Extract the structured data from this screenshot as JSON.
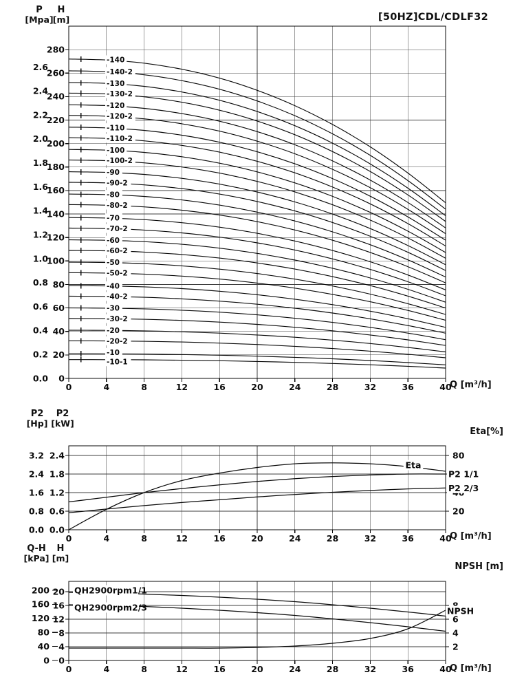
{
  "chart_data": [
    {
      "name": "main-qh-curves",
      "type": "line",
      "title": "[50HZ]CDL/CDLF32",
      "xlabel": "Q [m³/h]",
      "xlim": [
        0,
        40
      ],
      "x_ticks": [
        0,
        4,
        8,
        12,
        16,
        20,
        24,
        28,
        32,
        36,
        40
      ],
      "grid": true,
      "left_axis_1": {
        "symbol": "P",
        "unit": "[Mpa]",
        "m_per_unit": 101.97,
        "ticks": [
          "0.0",
          "0.2",
          "0.4",
          "0.6",
          "0.8",
          "1.0",
          "1.2",
          "1.4",
          "1.6",
          "1.8",
          "2.0",
          "2.2",
          "2.4",
          "2.6"
        ]
      },
      "left_axis_2": {
        "symbol": "H",
        "unit": "[m]",
        "ticks": [
          0,
          20,
          40,
          60,
          80,
          100,
          120,
          140,
          160,
          180,
          200,
          220,
          240,
          260,
          280
        ]
      },
      "ylim_m": [
        0,
        300
      ],
      "q_samples": [
        0,
        4,
        8,
        12,
        16,
        20,
        24,
        28,
        32,
        36,
        40
      ],
      "head_falloff": [
        1,
        0.997,
        0.987,
        0.968,
        0.94,
        0.902,
        0.854,
        0.795,
        0.725,
        0.643,
        0.55
      ],
      "series": [
        {
          "label": "-140",
          "shutoff_head_m": 272
        },
        {
          "label": "-140-2",
          "shutoff_head_m": 262
        },
        {
          "label": "-130",
          "shutoff_head_m": 252
        },
        {
          "label": "-130-2",
          "shutoff_head_m": 243
        },
        {
          "label": "-120",
          "shutoff_head_m": 233
        },
        {
          "label": "-120-2",
          "shutoff_head_m": 224
        },
        {
          "label": "-110",
          "shutoff_head_m": 214
        },
        {
          "label": "-110-2",
          "shutoff_head_m": 205
        },
        {
          "label": "-100",
          "shutoff_head_m": 195
        },
        {
          "label": "-100-2",
          "shutoff_head_m": 186
        },
        {
          "label": "-90",
          "shutoff_head_m": 176
        },
        {
          "label": "-90-2",
          "shutoff_head_m": 167
        },
        {
          "label": "-80",
          "shutoff_head_m": 157
        },
        {
          "label": "-80-2",
          "shutoff_head_m": 148
        },
        {
          "label": "-70",
          "shutoff_head_m": 137
        },
        {
          "label": "-70-2",
          "shutoff_head_m": 128
        },
        {
          "label": "-60",
          "shutoff_head_m": 118
        },
        {
          "label": "-60-2",
          "shutoff_head_m": 109
        },
        {
          "label": "-50",
          "shutoff_head_m": 99
        },
        {
          "label": "-50-2",
          "shutoff_head_m": 90
        },
        {
          "label": "-40",
          "shutoff_head_m": 79
        },
        {
          "label": "-40-2",
          "shutoff_head_m": 70
        },
        {
          "label": "-30",
          "shutoff_head_m": 60
        },
        {
          "label": "-30-2",
          "shutoff_head_m": 51
        },
        {
          "label": "-20",
          "shutoff_head_m": 41
        },
        {
          "label": "-20-2",
          "shutoff_head_m": 32
        },
        {
          "label": "-10",
          "shutoff_head_m": 21,
          "label_dy": -2
        },
        {
          "label": "-10-1",
          "shutoff_head_m": 16,
          "label_dy": 3
        }
      ]
    },
    {
      "name": "power-efficiency",
      "type": "line",
      "xlabel": "Q [m³/h]",
      "xlim": [
        0,
        40
      ],
      "x_ticks": [
        0,
        4,
        8,
        12,
        16,
        20,
        24,
        28,
        32,
        36,
        40
      ],
      "grid": true,
      "left_axis_hp": {
        "symbol": "P2",
        "unit": "[Hp]",
        "ticks": [
          "0.0",
          "0.8",
          "1.6",
          "2.4",
          "3.2"
        ]
      },
      "left_axis_kw": {
        "symbol": "P2",
        "unit": "[kW]",
        "ticks": [
          "0.0",
          "0.6",
          "1.2",
          "1.8",
          "2.4"
        ]
      },
      "right_axis": {
        "label": "Eta[%]",
        "ticks": [
          20,
          40,
          60,
          80
        ],
        "max_at_kw": 2.4,
        "lim": [
          0,
          80
        ]
      },
      "ylim_kw": [
        0,
        2.7
      ],
      "x": [
        0,
        4,
        8,
        12,
        16,
        20,
        24,
        28,
        32,
        36,
        40
      ],
      "series": [
        {
          "label": "Eta",
          "axis": "eta",
          "values": [
            0,
            22,
            40,
            53,
            61,
            67,
            71,
            72,
            71,
            68,
            63
          ]
        },
        {
          "label": "P2 1/1",
          "axis": "kw",
          "values": [
            0.9,
            1.05,
            1.2,
            1.33,
            1.45,
            1.56,
            1.65,
            1.72,
            1.77,
            1.8,
            1.8
          ]
        },
        {
          "label": "P2 2/3",
          "axis": "kw",
          "values": [
            0.55,
            0.67,
            0.78,
            0.88,
            0.97,
            1.06,
            1.14,
            1.21,
            1.27,
            1.32,
            1.35
          ]
        }
      ]
    },
    {
      "name": "single-stage-qh-npsh",
      "type": "line",
      "xlabel": "Q [m³/h]",
      "xlim": [
        0,
        40
      ],
      "x_ticks": [
        0,
        4,
        8,
        12,
        16,
        20,
        24,
        28,
        32,
        36,
        40
      ],
      "grid": true,
      "left_axis_kpa": {
        "symbol": "Q-H",
        "unit": "[kPa]",
        "kpa_per_m": 9.807,
        "ticks": [
          0,
          40,
          80,
          120,
          160,
          200
        ]
      },
      "left_axis_m": {
        "symbol": "H",
        "unit": "[m]",
        "ticks": [
          0,
          4,
          8,
          12,
          16,
          20
        ]
      },
      "right_axis": {
        "label": "NPSH [m]",
        "ticks": [
          2,
          4,
          6,
          8
        ],
        "m_per_unit": 2
      },
      "ylim_m": [
        0,
        23
      ],
      "x": [
        0,
        4,
        8,
        12,
        16,
        20,
        24,
        28,
        32,
        36,
        40
      ],
      "series": [
        {
          "label": "QH2900rpm1/1",
          "axis": "m",
          "values": [
            19.8,
            19.6,
            19.3,
            18.9,
            18.4,
            17.8,
            17.1,
            16.2,
            15.2,
            14.1,
            12.9
          ]
        },
        {
          "label": "QH2900rpm2/3",
          "axis": "m",
          "values": [
            16.2,
            16.0,
            15.7,
            15.2,
            14.6,
            13.9,
            13.1,
            12.1,
            11.0,
            9.8,
            8.5
          ]
        },
        {
          "label": "NPSH",
          "axis": "npsh",
          "values": [
            1.8,
            1.8,
            1.8,
            1.8,
            1.8,
            1.9,
            2.1,
            2.5,
            3.2,
            4.6,
            7.3
          ]
        }
      ]
    }
  ]
}
